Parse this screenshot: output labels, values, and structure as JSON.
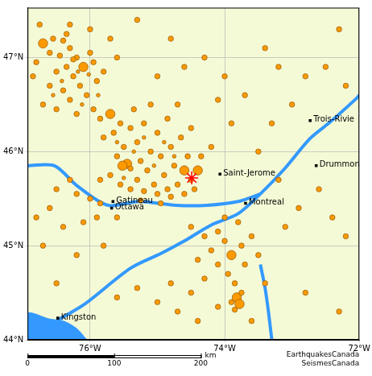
{
  "chart_data": {
    "type": "scatter",
    "xlim": [
      -76.93,
      -72
    ],
    "ylim": [
      44,
      47.53
    ],
    "xticks": [
      {
        "value": -76,
        "label": "76°W"
      },
      {
        "value": -74,
        "label": "74°W"
      },
      {
        "value": -72,
        "label": "72°W"
      }
    ],
    "yticks": [
      {
        "value": 44,
        "label": "44°N"
      },
      {
        "value": 45,
        "label": "45°N"
      },
      {
        "value": 46,
        "label": "46°N"
      },
      {
        "value": 47,
        "label": "47°N"
      }
    ],
    "grid": true,
    "series": [
      {
        "type": "area",
        "color": "#3399ff",
        "points": [
          [
            -76.93,
            44.0
          ],
          [
            -76.93,
            44.28
          ],
          [
            -76.6,
            44.22
          ],
          [
            -76.4,
            44.2
          ],
          [
            -76.2,
            44.12
          ],
          [
            -76.05,
            44.0
          ]
        ]
      },
      {
        "type": "line",
        "color": "#3399ff",
        "points": [
          [
            -76.48,
            44.21
          ],
          [
            -76.08,
            44.38
          ],
          [
            -75.4,
            44.76
          ],
          [
            -74.94,
            44.92
          ],
          [
            -74.6,
            45.05
          ],
          [
            -74.2,
            45.22
          ],
          [
            -73.8,
            45.34
          ],
          [
            -73.47,
            45.55
          ],
          [
            -73.12,
            45.81
          ],
          [
            -72.73,
            46.14
          ],
          [
            -72.44,
            46.31
          ],
          [
            -72.05,
            46.56
          ],
          [
            -72.0,
            46.6
          ]
        ]
      },
      {
        "type": "line",
        "color": "#3399ff",
        "points": [
          [
            -76.93,
            45.85
          ],
          [
            -76.53,
            45.85
          ],
          [
            -76.2,
            45.64
          ],
          [
            -75.74,
            45.43
          ],
          [
            -75.28,
            45.47
          ],
          [
            -74.72,
            45.43
          ],
          [
            -74.26,
            45.43
          ],
          [
            -73.8,
            45.47
          ],
          [
            -73.47,
            45.55
          ]
        ]
      },
      {
        "type": "line",
        "color": "#3399ff",
        "points": [
          [
            -73.47,
            44.8
          ],
          [
            -73.4,
            44.55
          ],
          [
            -73.35,
            44.3
          ],
          [
            -73.3,
            44.0
          ]
        ]
      },
      {
        "type": "scatter",
        "color": "#ff9900",
        "marker": "circle",
        "points": [
          [
            -76.7,
            47.15,
            3
          ],
          [
            -76.55,
            47.2,
            2
          ],
          [
            -76.4,
            47.18,
            2
          ],
          [
            -76.3,
            47.1,
            2
          ],
          [
            -76.6,
            47.05,
            2
          ],
          [
            -76.45,
            47.02,
            2
          ],
          [
            -76.2,
            47.0,
            2
          ],
          [
            -76.8,
            46.95,
            2
          ],
          [
            -76.35,
            46.9,
            2
          ],
          [
            -76.5,
            46.85,
            2
          ],
          [
            -76.25,
            46.8,
            2
          ],
          [
            -76.1,
            46.9,
            3
          ],
          [
            -76.0,
            47.05,
            2
          ],
          [
            -75.95,
            46.95,
            2
          ],
          [
            -76.15,
            46.7,
            2
          ],
          [
            -76.4,
            46.65,
            2
          ],
          [
            -76.6,
            46.7,
            2
          ],
          [
            -76.3,
            46.55,
            2
          ],
          [
            -76.05,
            46.6,
            2
          ],
          [
            -75.9,
            46.75,
            2
          ],
          [
            -75.8,
            46.85,
            2
          ],
          [
            -76.7,
            46.5,
            2
          ],
          [
            -76.5,
            46.45,
            2
          ],
          [
            -76.2,
            46.4,
            2
          ],
          [
            -75.95,
            46.45,
            2
          ],
          [
            -76.85,
            46.8,
            2
          ],
          [
            -76.75,
            47.35,
            2
          ],
          [
            -76.3,
            47.35,
            2
          ],
          [
            -76.0,
            47.3,
            2
          ],
          [
            -75.7,
            47.2,
            2
          ],
          [
            -75.6,
            47.0,
            2
          ],
          [
            -76.35,
            47.25,
            2
          ],
          [
            -76.25,
            46.98,
            2
          ],
          [
            -76.18,
            46.85,
            1
          ],
          [
            -76.42,
            46.75,
            1
          ],
          [
            -76.02,
            46.82,
            1
          ],
          [
            -75.88,
            46.6,
            1
          ],
          [
            -76.55,
            46.6,
            1
          ],
          [
            -76.12,
            46.5,
            1
          ],
          [
            -75.85,
            46.35,
            2
          ],
          [
            -75.7,
            46.4,
            3
          ],
          [
            -75.55,
            46.3,
            2
          ],
          [
            -75.4,
            46.25,
            2
          ],
          [
            -75.65,
            46.2,
            2
          ],
          [
            -75.8,
            46.15,
            2
          ],
          [
            -75.3,
            46.1,
            2
          ],
          [
            -75.5,
            46.05,
            2
          ],
          [
            -75.6,
            45.95,
            2
          ],
          [
            -75.45,
            45.87,
            3
          ],
          [
            -75.52,
            45.85,
            3
          ],
          [
            -75.4,
            45.82,
            2
          ],
          [
            -75.25,
            45.9,
            2
          ],
          [
            -75.1,
            46.0,
            2
          ],
          [
            -74.95,
            45.95,
            2
          ],
          [
            -75.15,
            45.8,
            2
          ],
          [
            -74.9,
            45.75,
            2
          ],
          [
            -74.75,
            45.85,
            2
          ],
          [
            -74.6,
            45.8,
            3
          ],
          [
            -74.55,
            45.95,
            2
          ],
          [
            -74.8,
            46.05,
            2
          ],
          [
            -74.65,
            46.15,
            2
          ],
          [
            -75.0,
            46.2,
            2
          ],
          [
            -75.2,
            46.3,
            2
          ],
          [
            -74.85,
            46.35,
            2
          ],
          [
            -75.35,
            46.45,
            2
          ],
          [
            -75.1,
            46.5,
            2
          ],
          [
            -74.7,
            46.5,
            2
          ],
          [
            -75.7,
            45.75,
            2
          ],
          [
            -75.85,
            45.7,
            2
          ],
          [
            -75.3,
            45.7,
            2
          ],
          [
            -75.05,
            45.65,
            2
          ],
          [
            -74.85,
            45.6,
            2
          ],
          [
            -74.7,
            45.65,
            2
          ],
          [
            -74.5,
            45.7,
            2
          ],
          [
            -74.4,
            45.8,
            3
          ],
          [
            -74.35,
            45.95,
            2
          ],
          [
            -74.2,
            46.05,
            2
          ],
          [
            -74.5,
            46.25,
            2
          ],
          [
            -75.55,
            45.65,
            2
          ],
          [
            -75.4,
            45.6,
            2
          ],
          [
            -75.2,
            45.58,
            2
          ],
          [
            -75.0,
            45.55,
            2
          ],
          [
            -74.8,
            45.52,
            2
          ],
          [
            -74.6,
            45.55,
            2
          ],
          [
            -74.45,
            45.6,
            2
          ],
          [
            -75.6,
            46.1,
            1
          ],
          [
            -75.35,
            46.0,
            1
          ],
          [
            -75.2,
            46.15,
            1
          ],
          [
            -74.9,
            46.1,
            1
          ],
          [
            -74.75,
            45.95,
            1
          ],
          [
            -75.05,
            45.85,
            1
          ],
          [
            -75.5,
            45.72,
            1
          ],
          [
            -74.95,
            45.45,
            2
          ],
          [
            -75.25,
            45.48,
            2
          ],
          [
            -76.2,
            45.55,
            2
          ],
          [
            -76.0,
            45.5,
            2
          ],
          [
            -75.85,
            45.45,
            2
          ],
          [
            -75.9,
            45.3,
            2
          ],
          [
            -76.1,
            45.25,
            2
          ],
          [
            -75.6,
            45.3,
            2
          ],
          [
            -76.3,
            45.7,
            2
          ],
          [
            -76.5,
            45.6,
            2
          ],
          [
            -76.6,
            45.4,
            2
          ],
          [
            -76.8,
            45.3,
            2
          ],
          [
            -76.4,
            45.2,
            2
          ],
          [
            -74.5,
            45.2,
            2
          ],
          [
            -74.3,
            45.1,
            2
          ],
          [
            -74.1,
            45.15,
            2
          ],
          [
            -74.2,
            44.95,
            2
          ],
          [
            -74.0,
            45.05,
            2
          ],
          [
            -73.9,
            44.9,
            3
          ],
          [
            -73.75,
            45.0,
            2
          ],
          [
            -73.6,
            45.1,
            2
          ],
          [
            -73.8,
            45.25,
            2
          ],
          [
            -74.0,
            45.3,
            2
          ],
          [
            -73.5,
            44.9,
            2
          ],
          [
            -73.7,
            44.8,
            2
          ],
          [
            -74.1,
            44.8,
            2
          ],
          [
            -74.4,
            44.85,
            2
          ],
          [
            -73.95,
            44.7,
            2
          ],
          [
            -73.85,
            44.6,
            2
          ],
          [
            -74.3,
            44.65,
            2
          ],
          [
            -73.82,
            44.45,
            3
          ],
          [
            -73.78,
            44.38,
            3
          ],
          [
            -73.85,
            44.32,
            2
          ],
          [
            -73.9,
            44.4,
            2
          ],
          [
            -73.75,
            44.5,
            2
          ],
          [
            -74.1,
            44.35,
            2
          ],
          [
            -74.4,
            44.2,
            2
          ],
          [
            -74.7,
            44.3,
            2
          ],
          [
            -75.0,
            44.4,
            2
          ],
          [
            -74.5,
            44.5,
            2
          ],
          [
            -74.8,
            44.6,
            2
          ],
          [
            -75.3,
            44.55,
            2
          ],
          [
            -75.6,
            44.45,
            2
          ],
          [
            -73.6,
            44.2,
            2
          ],
          [
            -73.5,
            46.0,
            2
          ],
          [
            -73.3,
            46.3,
            2
          ],
          [
            -73.0,
            46.5,
            2
          ],
          [
            -72.8,
            46.8,
            2
          ],
          [
            -73.2,
            46.9,
            2
          ],
          [
            -73.7,
            46.6,
            2
          ],
          [
            -74.0,
            46.8,
            2
          ],
          [
            -74.3,
            47.0,
            2
          ],
          [
            -74.8,
            47.2,
            2
          ],
          [
            -72.5,
            46.9,
            2
          ],
          [
            -72.3,
            47.3,
            2
          ],
          [
            -72.6,
            45.6,
            2
          ],
          [
            -72.9,
            45.4,
            2
          ],
          [
            -73.1,
            45.2,
            2
          ],
          [
            -72.4,
            45.3,
            2
          ],
          [
            -72.2,
            45.1,
            2
          ],
          [
            -73.2,
            45.7,
            2
          ],
          [
            -72.2,
            46.7,
            2
          ],
          [
            -73.9,
            46.3,
            2
          ],
          [
            -74.1,
            46.55,
            2
          ],
          [
            -73.4,
            47.1,
            2
          ],
          [
            -75.3,
            47.4,
            2
          ],
          [
            -74.6,
            46.9,
            2
          ],
          [
            -75.0,
            46.8,
            2
          ],
          [
            -73.4,
            44.6,
            2
          ],
          [
            -72.8,
            44.5,
            2
          ],
          [
            -72.3,
            44.3,
            2
          ],
          [
            -76.5,
            44.6,
            2
          ],
          [
            -76.2,
            44.9,
            2
          ],
          [
            -75.8,
            45.0,
            2
          ],
          [
            -76.7,
            45.0,
            2
          ]
        ]
      },
      {
        "type": "scatter",
        "color": "#ff0000",
        "marker": "star",
        "points": [
          [
            -74.49,
            45.72
          ]
        ]
      },
      {
        "type": "scatter",
        "color": "#000000",
        "marker": "rect",
        "points": [
          [
            -75.66,
            45.47
          ],
          [
            -75.68,
            45.4
          ],
          [
            -74.07,
            45.76
          ],
          [
            -73.69,
            45.45
          ],
          [
            -72.73,
            46.33
          ],
          [
            -72.64,
            45.85
          ],
          [
            -76.48,
            44.23
          ]
        ],
        "labels": [
          "Gatineau",
          "Ottawa",
          "Saint-Jerome",
          "Montreal",
          "Trois-Rivie",
          "Drummon",
          "Kingston"
        ]
      }
    ],
    "scale_bar": {
      "ticks": [
        0,
        100,
        200
      ],
      "label": "km"
    },
    "annotations": [
      "EarthquakesCanada",
      "SeismesCanada"
    ]
  }
}
